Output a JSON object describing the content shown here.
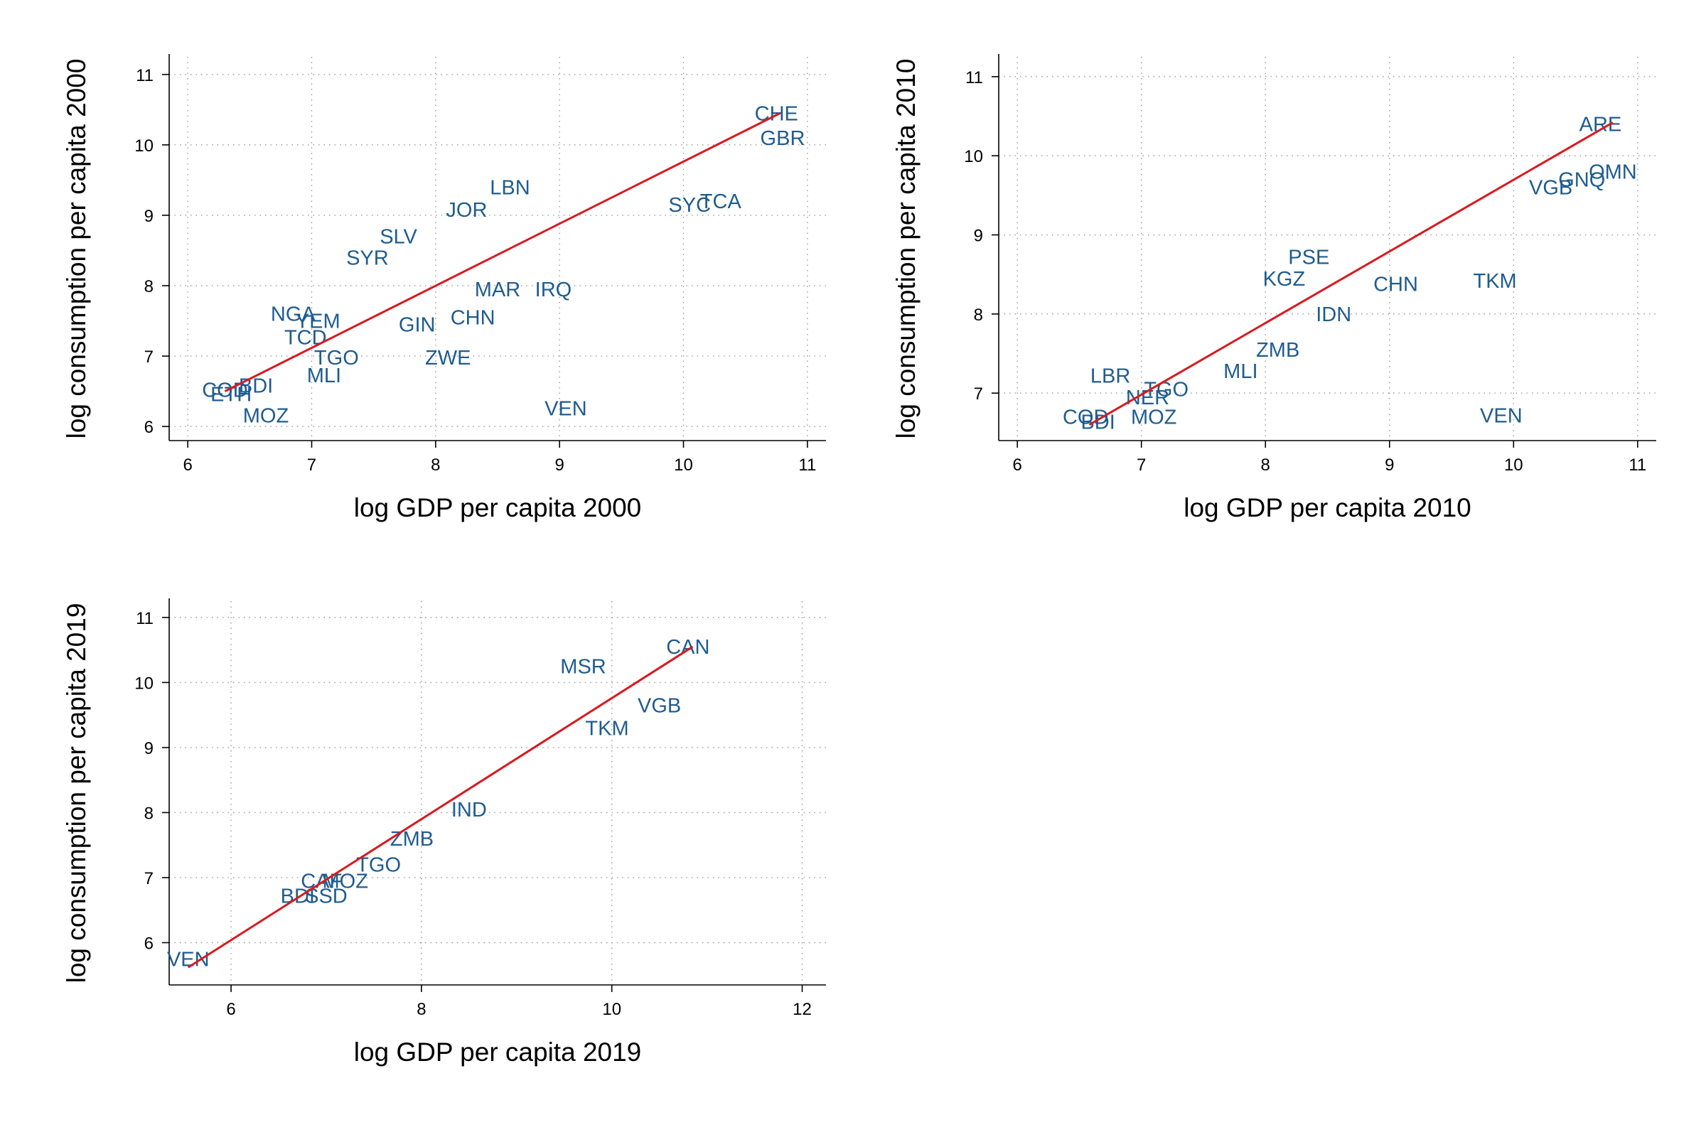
{
  "chart_data": [
    {
      "type": "scatter",
      "xlabel": "log GDP per capita 2000",
      "ylabel": "log consumption per capita 2000",
      "xlim": [
        5.85,
        11.15
      ],
      "ylim": [
        5.8,
        11.25
      ],
      "xticks": [
        6,
        7,
        8,
        9,
        10,
        11
      ],
      "yticks": [
        6,
        7,
        8,
        9,
        10,
        11
      ],
      "grid": true,
      "marker": "country-code label",
      "fit_line": {
        "x": [
          6.3,
          10.78
        ],
        "y": [
          6.5,
          10.45
        ]
      },
      "labels": [
        {
          "code": "COD",
          "x": 6.3,
          "y": 6.52
        },
        {
          "code": "ETH",
          "x": 6.35,
          "y": 6.46
        },
        {
          "code": "BDI",
          "x": 6.55,
          "y": 6.58
        },
        {
          "code": "MOZ",
          "x": 6.63,
          "y": 6.16
        },
        {
          "code": "NGA",
          "x": 6.85,
          "y": 7.6
        },
        {
          "code": "YEM",
          "x": 7.05,
          "y": 7.5
        },
        {
          "code": "TCD",
          "x": 6.95,
          "y": 7.27
        },
        {
          "code": "TGO",
          "x": 7.2,
          "y": 6.98
        },
        {
          "code": "MLI",
          "x": 7.1,
          "y": 6.73
        },
        {
          "code": "GIN",
          "x": 7.85,
          "y": 7.45
        },
        {
          "code": "ZWE",
          "x": 8.1,
          "y": 6.98
        },
        {
          "code": "SYR",
          "x": 7.45,
          "y": 8.4
        },
        {
          "code": "SLV",
          "x": 7.7,
          "y": 8.7
        },
        {
          "code": "JOR",
          "x": 8.25,
          "y": 9.08
        },
        {
          "code": "LBN",
          "x": 8.6,
          "y": 9.4
        },
        {
          "code": "MAR",
          "x": 8.5,
          "y": 7.95
        },
        {
          "code": "CHN",
          "x": 8.3,
          "y": 7.55
        },
        {
          "code": "IRQ",
          "x": 8.95,
          "y": 7.95
        },
        {
          "code": "VEN",
          "x": 9.05,
          "y": 6.26
        },
        {
          "code": "SYC",
          "x": 10.05,
          "y": 9.15
        },
        {
          "code": "TCA",
          "x": 10.3,
          "y": 9.2
        },
        {
          "code": "CHE",
          "x": 10.75,
          "y": 10.45
        },
        {
          "code": "GBR",
          "x": 10.8,
          "y": 10.1
        }
      ]
    },
    {
      "type": "scatter",
      "xlabel": "log GDP per capita 2010",
      "ylabel": "log consumption per capita 2010",
      "xlim": [
        5.85,
        11.15
      ],
      "ylim": [
        6.4,
        11.25
      ],
      "xticks": [
        6,
        7,
        8,
        9,
        10,
        11
      ],
      "yticks": [
        7,
        8,
        9,
        10,
        11
      ],
      "grid": true,
      "marker": "country-code label",
      "fit_line": {
        "x": [
          6.58,
          10.8
        ],
        "y": [
          6.6,
          10.42
        ]
      },
      "labels": [
        {
          "code": "COD",
          "x": 6.55,
          "y": 6.7
        },
        {
          "code": "BDI",
          "x": 6.65,
          "y": 6.64
        },
        {
          "code": "MOZ",
          "x": 7.1,
          "y": 6.7
        },
        {
          "code": "LBR",
          "x": 6.75,
          "y": 7.22
        },
        {
          "code": "NER",
          "x": 7.05,
          "y": 6.95
        },
        {
          "code": "TGO",
          "x": 7.2,
          "y": 7.05
        },
        {
          "code": "MLI",
          "x": 7.8,
          "y": 7.28
        },
        {
          "code": "ZMB",
          "x": 8.1,
          "y": 7.55
        },
        {
          "code": "KGZ",
          "x": 8.15,
          "y": 8.45
        },
        {
          "code": "PSE",
          "x": 8.35,
          "y": 8.72
        },
        {
          "code": "IDN",
          "x": 8.55,
          "y": 8.0
        },
        {
          "code": "CHN",
          "x": 9.05,
          "y": 8.38
        },
        {
          "code": "TKM",
          "x": 9.85,
          "y": 8.42
        },
        {
          "code": "VEN",
          "x": 9.9,
          "y": 6.72
        },
        {
          "code": "VGB",
          "x": 10.3,
          "y": 9.6
        },
        {
          "code": "OMN",
          "x": 10.8,
          "y": 9.8
        },
        {
          "code": "GNQ",
          "x": 10.55,
          "y": 9.7
        },
        {
          "code": "ARE",
          "x": 10.7,
          "y": 10.4
        }
      ]
    },
    {
      "type": "scatter",
      "xlabel": "log GDP per capita 2019",
      "ylabel": "log consumption per capita 2019",
      "xlim": [
        5.35,
        12.25
      ],
      "ylim": [
        5.35,
        11.25
      ],
      "xticks": [
        6,
        8,
        10,
        12
      ],
      "yticks": [
        6,
        7,
        8,
        9,
        10,
        11
      ],
      "grid": true,
      "marker": "country-code label",
      "fit_line": {
        "x": [
          5.55,
          10.85
        ],
        "y": [
          5.62,
          10.55
        ]
      },
      "labels": [
        {
          "code": "VEN",
          "x": 5.55,
          "y": 5.75
        },
        {
          "code": "BDI",
          "x": 6.7,
          "y": 6.72
        },
        {
          "code": "SSD",
          "x": 7.0,
          "y": 6.72
        },
        {
          "code": "CAF",
          "x": 6.95,
          "y": 6.95
        },
        {
          "code": "MOZ",
          "x": 7.2,
          "y": 6.95
        },
        {
          "code": "TGO",
          "x": 7.55,
          "y": 7.2
        },
        {
          "code": "ZMB",
          "x": 7.9,
          "y": 7.6
        },
        {
          "code": "IND",
          "x": 8.5,
          "y": 8.05
        },
        {
          "code": "TKM",
          "x": 9.95,
          "y": 9.3
        },
        {
          "code": "VGB",
          "x": 10.5,
          "y": 9.65
        },
        {
          "code": "MSR",
          "x": 9.7,
          "y": 10.25
        },
        {
          "code": "CAN",
          "x": 10.8,
          "y": 10.55
        }
      ]
    }
  ]
}
